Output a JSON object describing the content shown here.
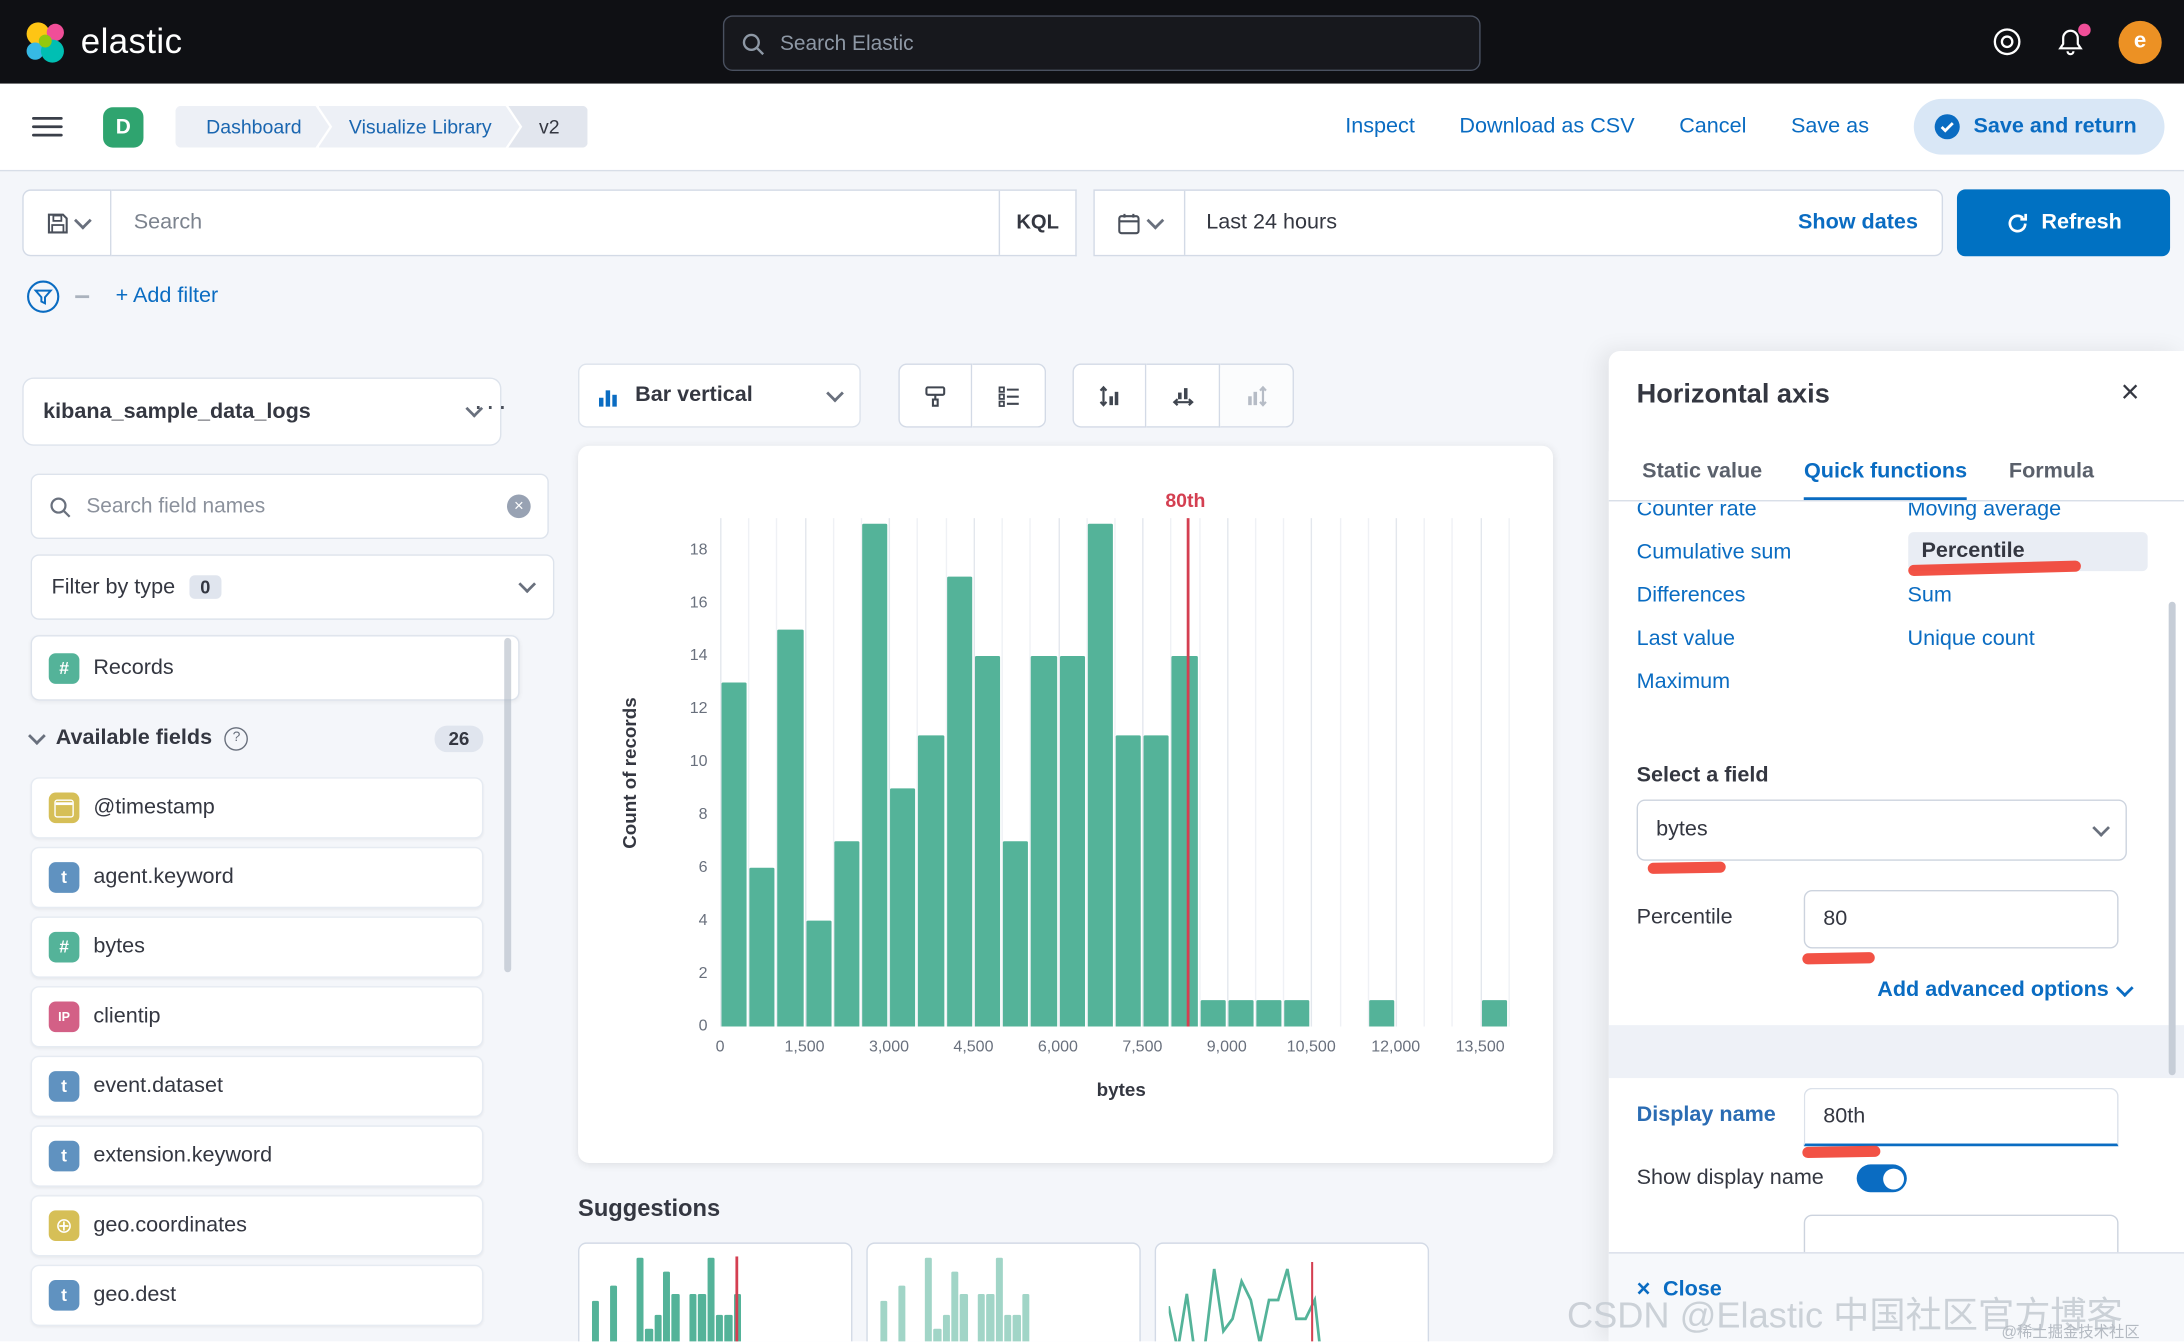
{
  "topbar": {
    "brand": "elastic",
    "search_placeholder": "Search Elastic",
    "avatar_initial": "e"
  },
  "navbar": {
    "space_badge": "D",
    "breadcrumbs": [
      "Dashboard",
      "Visualize Library",
      "v2"
    ],
    "actions": [
      "Inspect",
      "Download as CSV",
      "Cancel",
      "Save as"
    ],
    "primary_action": "Save and return"
  },
  "querybar": {
    "search_placeholder": "Search",
    "kql_label": "KQL",
    "time_range": "Last 24 hours",
    "show_dates_label": "Show dates",
    "refresh_label": "Refresh",
    "add_filter_label": "+ Add filter"
  },
  "sidebar": {
    "data_view": "kibana_sample_data_logs",
    "options_button": "···",
    "field_search_placeholder": "Search field names",
    "filter_by_type_label": "Filter by type",
    "filter_by_type_count": "0",
    "records_label": "Records",
    "available_fields_label": "Available fields",
    "available_fields_count": "26",
    "fields": [
      {
        "name": "@timestamp",
        "type": "date"
      },
      {
        "name": "agent.keyword",
        "type": "keyword"
      },
      {
        "name": "bytes",
        "type": "number"
      },
      {
        "name": "clientip",
        "type": "ip"
      },
      {
        "name": "event.dataset",
        "type": "keyword"
      },
      {
        "name": "extension.keyword",
        "type": "keyword"
      },
      {
        "name": "geo.coordinates",
        "type": "geo"
      },
      {
        "name": "geo.dest",
        "type": "keyword"
      }
    ]
  },
  "toolbar": {
    "chart_type_label": "Bar vertical"
  },
  "workspace": {
    "suggestions_label": "Suggestions"
  },
  "chart_data": {
    "type": "bar",
    "title": "",
    "xlabel": "bytes",
    "ylabel": "Count of records",
    "x_domain": [
      0,
      14250
    ],
    "ylim": [
      0,
      19.2
    ],
    "x_tick_step": 1500,
    "x_ticks": [
      "0",
      "1,500",
      "3,000",
      "4,500",
      "6,000",
      "7,500",
      "9,000",
      "10,500",
      "12,000",
      "13,500"
    ],
    "y_ticks": [
      "0",
      "2",
      "4",
      "6",
      "8",
      "10",
      "12",
      "14",
      "16",
      "18"
    ],
    "bin_width": 500,
    "values": [
      13,
      6,
      15,
      4,
      7,
      19,
      9,
      11,
      17,
      14,
      7,
      14,
      14,
      19,
      11,
      11,
      14,
      1,
      1,
      1,
      1,
      0,
      0,
      1,
      0,
      0,
      0,
      1
    ],
    "bar_color": "#54B399",
    "grid": true,
    "legend": "none",
    "reference_line": {
      "label": "80th",
      "x": 8300,
      "color": "#D43F51"
    }
  },
  "panel": {
    "title": "Horizontal axis",
    "tabs": [
      {
        "label": "Static value",
        "active": false
      },
      {
        "label": "Quick functions",
        "active": true
      },
      {
        "label": "Formula",
        "active": false
      }
    ],
    "functions_left": [
      "Counter rate",
      "Cumulative sum",
      "Differences",
      "Last value",
      "Maximum"
    ],
    "functions_right": [
      "Moving average",
      "Percentile",
      "Sum",
      "Unique count"
    ],
    "selected_function": "Percentile",
    "select_field_label": "Select a field",
    "field_value": "bytes",
    "percentile_label": "Percentile",
    "percentile_value": "80",
    "advanced_options_label": "Add advanced options",
    "display_name_label": "Display name",
    "display_name_value": "80th",
    "show_display_name_label": "Show display name",
    "close_label": "Close"
  },
  "watermark": {
    "main": "CSDN @Elastic 中国社区官方博客",
    "small": "@稀土掘金技术社区"
  }
}
